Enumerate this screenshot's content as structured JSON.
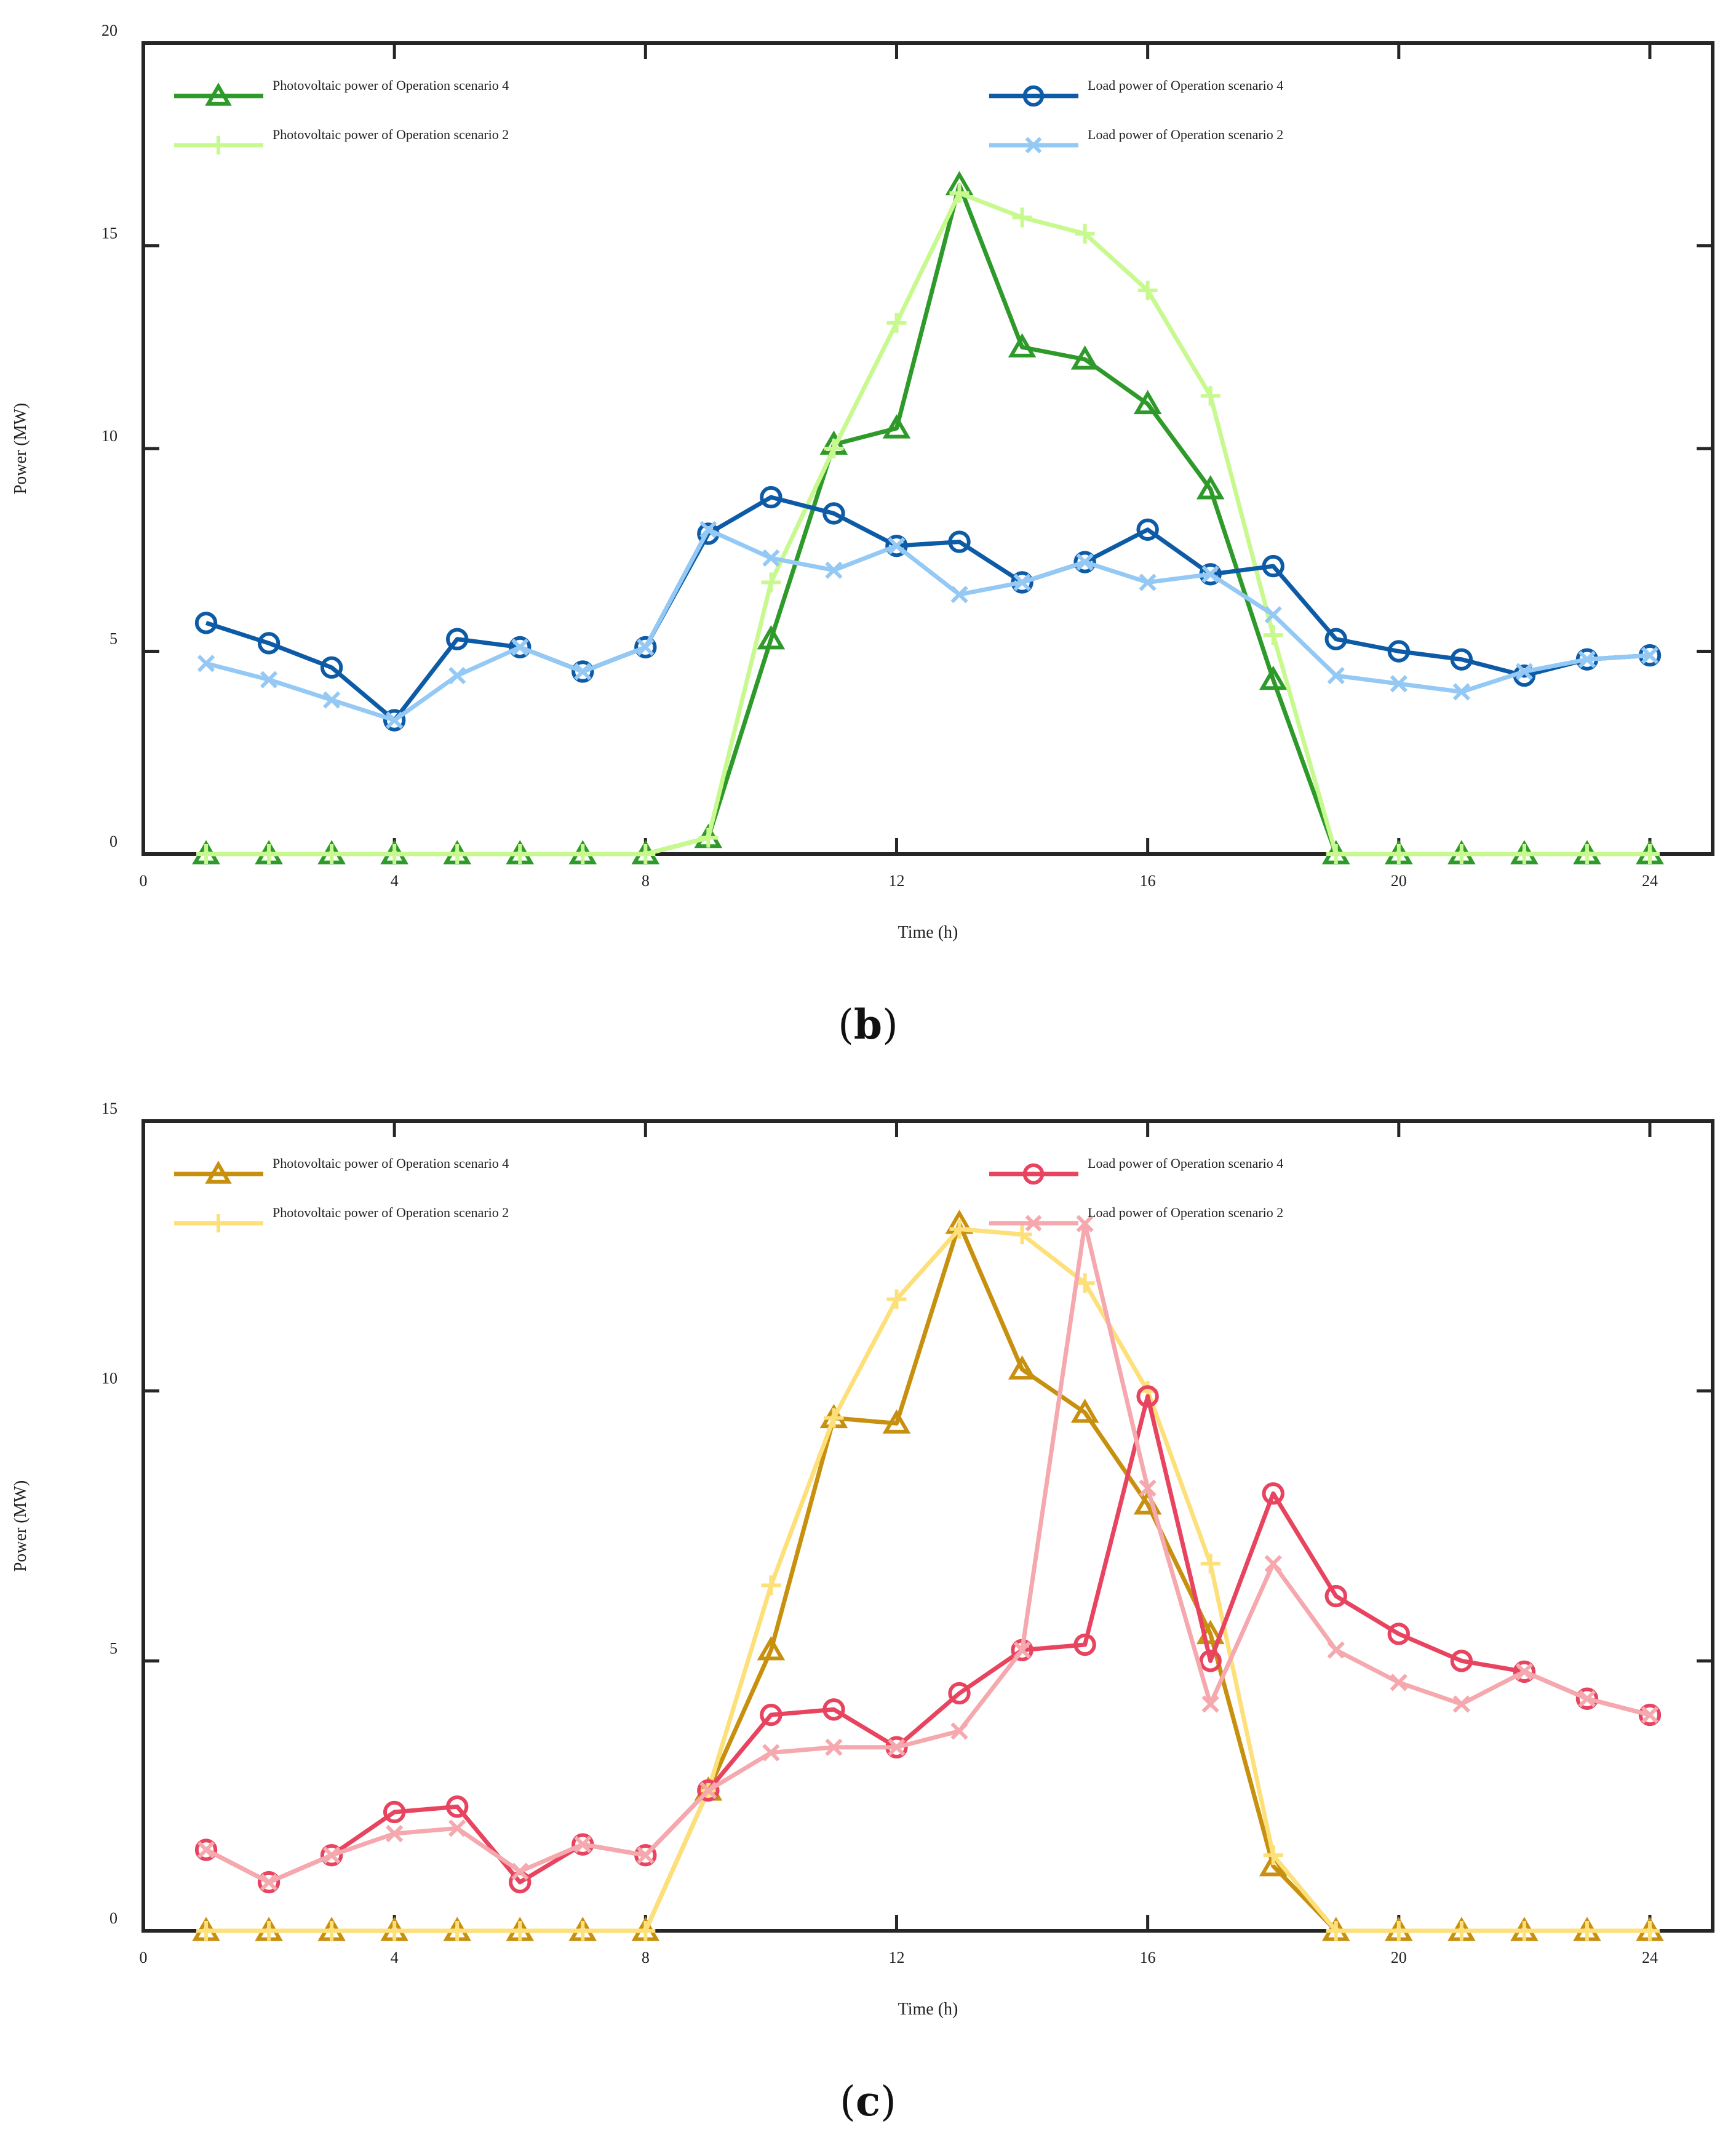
{
  "chart_data": [
    {
      "type": "line",
      "panel_label": "b",
      "caption_open": "(",
      "caption_close": ")",
      "xlabel": "Time (h)",
      "ylabel": "Power (MW)",
      "xlim": [
        0,
        25
      ],
      "ylim": [
        0,
        20
      ],
      "xticks": [
        0,
        4,
        8,
        12,
        16,
        20,
        24
      ],
      "yticks": [
        0,
        5,
        10,
        15,
        20
      ],
      "grid": false,
      "legend_position": "top",
      "series": [
        {
          "name": "Photovoltaic power of Operation scenario 4",
          "color": "#2e9a2a",
          "marker": "triangle",
          "x": [
            1,
            2,
            3,
            4,
            5,
            6,
            7,
            8,
            9,
            10,
            11,
            12,
            13,
            14,
            15,
            16,
            17,
            18,
            19,
            20,
            21,
            22,
            23,
            24
          ],
          "values": [
            0,
            0,
            0,
            0,
            0,
            0,
            0,
            0,
            0.4,
            5.3,
            10.1,
            10.5,
            16.5,
            12.5,
            12.2,
            11.1,
            9.0,
            4.3,
            0,
            0,
            0,
            0,
            0,
            0
          ]
        },
        {
          "name": "Photovoltaic power of Operation scenario 2",
          "color": "#c8f98f",
          "marker": "plus",
          "x": [
            1,
            2,
            3,
            4,
            5,
            6,
            7,
            8,
            9,
            10,
            11,
            12,
            13,
            14,
            15,
            16,
            17,
            18,
            19,
            20,
            21,
            22,
            23,
            24
          ],
          "values": [
            0,
            0,
            0,
            0,
            0,
            0,
            0,
            0,
            0.4,
            6.7,
            10.0,
            13.1,
            16.3,
            15.7,
            15.3,
            13.9,
            11.3,
            5.4,
            0,
            0,
            0,
            0,
            0,
            0
          ]
        },
        {
          "name": "Load power of Operation scenario 4",
          "color": "#0d5ba6",
          "marker": "circle",
          "x": [
            1,
            2,
            3,
            4,
            5,
            6,
            7,
            8,
            9,
            10,
            11,
            12,
            13,
            14,
            15,
            16,
            17,
            18,
            19,
            20,
            21,
            22,
            23,
            24
          ],
          "values": [
            5.7,
            5.2,
            4.6,
            3.3,
            5.3,
            5.1,
            4.5,
            5.1,
            7.9,
            8.8,
            8.4,
            7.6,
            7.7,
            6.7,
            7.2,
            8.0,
            6.9,
            7.1,
            5.3,
            5.0,
            4.8,
            4.4,
            4.8,
            4.9
          ]
        },
        {
          "name": "Load power of Operation scenario 2",
          "color": "#93c9f4",
          "marker": "cross",
          "x": [
            1,
            2,
            3,
            4,
            5,
            6,
            7,
            8,
            9,
            10,
            11,
            12,
            13,
            14,
            15,
            16,
            17,
            18,
            19,
            20,
            21,
            22,
            23,
            24
          ],
          "values": [
            4.7,
            4.3,
            3.8,
            3.3,
            4.4,
            5.1,
            4.5,
            5.1,
            8.0,
            7.3,
            7.0,
            7.6,
            6.4,
            6.7,
            7.2,
            6.7,
            6.9,
            5.9,
            4.4,
            4.2,
            4.0,
            4.5,
            4.8,
            4.9
          ]
        }
      ]
    },
    {
      "type": "line",
      "panel_label": "c",
      "caption_open": "(",
      "caption_close": ")",
      "xlabel": "Time (h)",
      "ylabel": "Power (MW)",
      "xlim": [
        0,
        25
      ],
      "ylim": [
        0,
        15
      ],
      "xticks": [
        0,
        4,
        8,
        12,
        16,
        20,
        24
      ],
      "yticks": [
        0,
        5,
        10,
        15
      ],
      "grid": false,
      "legend_position": "top",
      "series": [
        {
          "name": "Photovoltaic power of Operation scenario 4",
          "color": "#c8900f",
          "marker": "triangle",
          "x": [
            1,
            2,
            3,
            4,
            5,
            6,
            7,
            8,
            9,
            10,
            11,
            12,
            13,
            14,
            15,
            16,
            17,
            18,
            19,
            20,
            21,
            22,
            23,
            24
          ],
          "values": [
            0,
            0,
            0,
            0,
            0,
            0,
            0,
            0,
            2.6,
            5.2,
            9.5,
            9.4,
            13.1,
            10.4,
            9.6,
            7.9,
            5.5,
            1.2,
            0,
            0,
            0,
            0,
            0,
            0
          ]
        },
        {
          "name": "Photovoltaic power of Operation scenario 2",
          "color": "#fde07a",
          "marker": "plus",
          "x": [
            1,
            2,
            3,
            4,
            5,
            6,
            7,
            8,
            9,
            10,
            11,
            12,
            13,
            14,
            15,
            16,
            17,
            18,
            19,
            20,
            21,
            22,
            23,
            24
          ],
          "values": [
            0,
            0,
            0,
            0,
            0,
            0,
            0,
            0,
            2.6,
            6.4,
            9.5,
            11.7,
            13.0,
            12.9,
            12.0,
            10.0,
            6.8,
            1.4,
            0,
            0,
            0,
            0,
            0,
            0
          ]
        },
        {
          "name": "Load power of Operation scenario 4",
          "color": "#e8435f",
          "marker": "circle",
          "x": [
            1,
            2,
            3,
            4,
            5,
            6,
            7,
            8,
            9,
            10,
            11,
            12,
            13,
            14,
            15,
            16,
            17,
            18,
            19,
            20,
            21,
            22,
            23,
            24
          ],
          "values": [
            1.5,
            0.9,
            1.4,
            2.2,
            2.3,
            0.9,
            1.6,
            1.4,
            2.6,
            4.0,
            4.1,
            3.4,
            4.4,
            5.2,
            5.3,
            9.9,
            5.0,
            8.1,
            6.2,
            5.5,
            5.0,
            4.8,
            4.3,
            4.0
          ]
        },
        {
          "name": "Load power of Operation scenario 2",
          "color": "#f5a8ad",
          "marker": "cross",
          "x": [
            1,
            2,
            3,
            4,
            5,
            6,
            7,
            8,
            9,
            10,
            11,
            12,
            13,
            14,
            15,
            16,
            17,
            18,
            19,
            20,
            21,
            22,
            23,
            24
          ],
          "values": [
            1.5,
            0.9,
            1.4,
            1.8,
            1.9,
            1.1,
            1.6,
            1.4,
            2.6,
            3.3,
            3.4,
            3.4,
            3.7,
            5.2,
            13.1,
            8.2,
            4.2,
            6.8,
            5.2,
            4.6,
            4.2,
            4.8,
            4.3,
            4.0
          ]
        }
      ]
    }
  ]
}
